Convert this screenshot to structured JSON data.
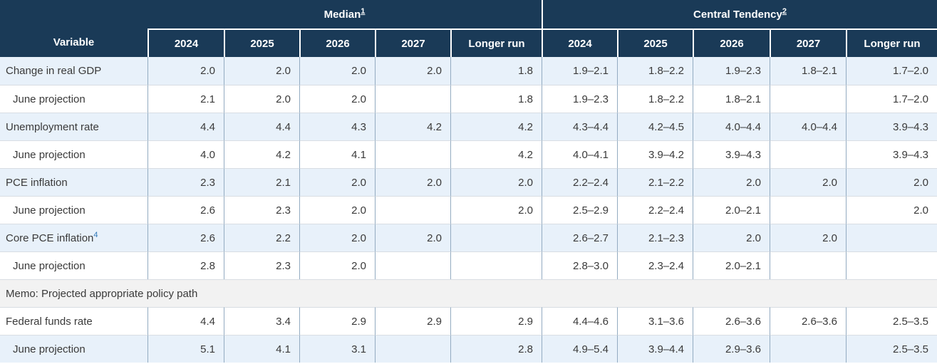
{
  "table": {
    "variable_header": "Variable",
    "groups": [
      {
        "label": "Median",
        "footnote": "1"
      },
      {
        "label": "Central Tendency",
        "footnote": "2"
      }
    ],
    "years": [
      "2024",
      "2025",
      "2026",
      "2027",
      "Longer run"
    ],
    "rows": [
      {
        "label": "Change in real GDP",
        "sup": "",
        "indent": false,
        "shade": "blue",
        "median": [
          "2.0",
          "2.0",
          "2.0",
          "2.0",
          "1.8"
        ],
        "central": [
          "1.9–2.1",
          "1.8–2.2",
          "1.9–2.3",
          "1.8–2.1",
          "1.7–2.0"
        ]
      },
      {
        "label": "June projection",
        "sup": "",
        "indent": true,
        "shade": "white",
        "median": [
          "2.1",
          "2.0",
          "2.0",
          "",
          "1.8"
        ],
        "central": [
          "1.9–2.3",
          "1.8–2.2",
          "1.8–2.1",
          "",
          "1.7–2.0"
        ]
      },
      {
        "label": "Unemployment rate",
        "sup": "",
        "indent": false,
        "shade": "blue",
        "median": [
          "4.4",
          "4.4",
          "4.3",
          "4.2",
          "4.2"
        ],
        "central": [
          "4.3–4.4",
          "4.2–4.5",
          "4.0–4.4",
          "4.0–4.4",
          "3.9–4.3"
        ]
      },
      {
        "label": "June projection",
        "sup": "",
        "indent": true,
        "shade": "white",
        "median": [
          "4.0",
          "4.2",
          "4.1",
          "",
          "4.2"
        ],
        "central": [
          "4.0–4.1",
          "3.9–4.2",
          "3.9–4.3",
          "",
          "3.9–4.3"
        ]
      },
      {
        "label": "PCE inflation",
        "sup": "",
        "indent": false,
        "shade": "blue",
        "median": [
          "2.3",
          "2.1",
          "2.0",
          "2.0",
          "2.0"
        ],
        "central": [
          "2.2–2.4",
          "2.1–2.2",
          "2.0",
          "2.0",
          "2.0"
        ]
      },
      {
        "label": "June projection",
        "sup": "",
        "indent": true,
        "shade": "white",
        "median": [
          "2.6",
          "2.3",
          "2.0",
          "",
          "2.0"
        ],
        "central": [
          "2.5–2.9",
          "2.2–2.4",
          "2.0–2.1",
          "",
          "2.0"
        ]
      },
      {
        "label": "Core PCE inflation",
        "sup": "4",
        "indent": false,
        "shade": "blue",
        "median": [
          "2.6",
          "2.2",
          "2.0",
          "2.0",
          ""
        ],
        "central": [
          "2.6–2.7",
          "2.1–2.3",
          "2.0",
          "2.0",
          ""
        ]
      },
      {
        "label": "June projection",
        "sup": "",
        "indent": true,
        "shade": "white",
        "median": [
          "2.8",
          "2.3",
          "2.0",
          "",
          ""
        ],
        "central": [
          "2.8–3.0",
          "2.3–2.4",
          "2.0–2.1",
          "",
          ""
        ]
      },
      {
        "type": "memo",
        "label": "Memo: Projected appropriate policy path"
      },
      {
        "label": "Federal funds rate",
        "sup": "",
        "indent": false,
        "shade": "white",
        "median": [
          "4.4",
          "3.4",
          "2.9",
          "2.9",
          "2.9"
        ],
        "central": [
          "4.4–4.6",
          "3.1–3.6",
          "2.6–3.6",
          "2.6–3.6",
          "2.5–3.5"
        ]
      },
      {
        "label": "June projection",
        "sup": "",
        "indent": true,
        "shade": "blue",
        "median": [
          "5.1",
          "4.1",
          "3.1",
          "",
          "2.8"
        ],
        "central": [
          "4.9–5.4",
          "3.9–4.4",
          "2.9–3.6",
          "",
          "2.5–3.5"
        ]
      }
    ],
    "colors": {
      "header_bg": "#1a3a57",
      "row_blue": "#e8f1fa",
      "row_white": "#ffffff",
      "memo_bg": "#f2f2f2",
      "cell_border": "#93abc1",
      "row_divider": "#d8dde3",
      "footnote_link": "#3078b8"
    }
  }
}
